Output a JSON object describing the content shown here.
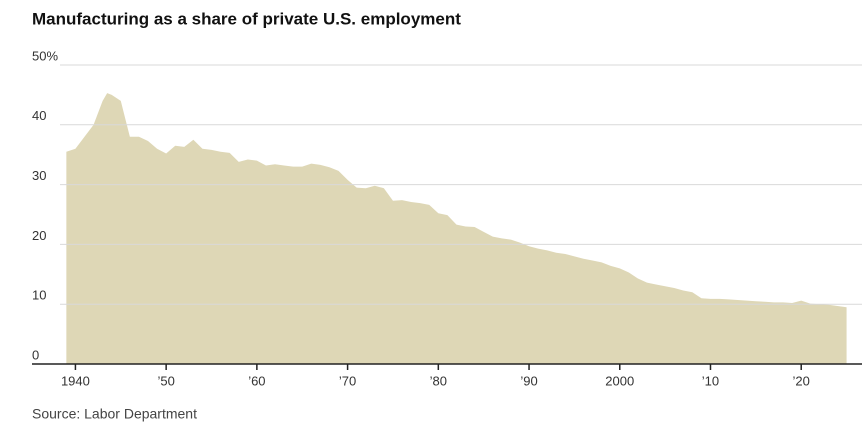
{
  "chart_data": {
    "type": "area",
    "title": "Manufacturing as a share of private U.S. employment",
    "source": "Source: Labor Department",
    "color": "#ded7b6",
    "grid": true,
    "x": [
      1939,
      1940,
      1941,
      1942,
      1943,
      1943.5,
      1944,
      1945,
      1945.5,
      1946,
      1947,
      1948,
      1949,
      1950,
      1951,
      1952,
      1953,
      1954,
      1955,
      1956,
      1957,
      1958,
      1959,
      1960,
      1961,
      1962,
      1963,
      1964,
      1965,
      1966,
      1967,
      1968,
      1969,
      1970,
      1971,
      1972,
      1973,
      1974,
      1975,
      1976,
      1977,
      1978,
      1979,
      1980,
      1981,
      1982,
      1983,
      1984,
      1985,
      1986,
      1987,
      1988,
      1989,
      1990,
      1991,
      1992,
      1993,
      1994,
      1995,
      1996,
      1997,
      1998,
      1999,
      2000,
      2001,
      2002,
      2003,
      2004,
      2005,
      2006,
      2007,
      2008,
      2009,
      2010,
      2011,
      2012,
      2013,
      2014,
      2015,
      2016,
      2017,
      2018,
      2019,
      2020,
      2021,
      2022,
      2023,
      2024,
      2025
    ],
    "values": [
      35.5,
      36,
      38,
      40,
      44,
      45.3,
      45,
      44,
      41,
      38,
      38,
      37.3,
      36,
      35.2,
      36.5,
      36.3,
      37.5,
      36,
      35.8,
      35.5,
      35.3,
      33.8,
      34.2,
      34,
      33.2,
      33.4,
      33.2,
      33,
      33,
      33.5,
      33.3,
      32.9,
      32.3,
      30.8,
      29.5,
      29.4,
      29.8,
      29.4,
      27.3,
      27.4,
      27.1,
      26.9,
      26.6,
      25.2,
      24.9,
      23.3,
      23,
      22.9,
      22.1,
      21.3,
      21,
      20.8,
      20.3,
      19.7,
      19.3,
      19,
      18.6,
      18.4,
      18,
      17.6,
      17.3,
      17,
      16.4,
      16,
      15.3,
      14.3,
      13.6,
      13.3,
      13,
      12.7,
      12.3,
      12,
      11,
      10.9,
      10.9,
      10.8,
      10.7,
      10.6,
      10.5,
      10.4,
      10.3,
      10.3,
      10.2,
      10.6,
      10.1,
      10,
      9.9,
      9.7,
      9.5
    ],
    "xlim": [
      1938.3,
      2026.7
    ],
    "ylim": [
      0,
      50
    ],
    "xticks": [
      1940,
      {
        "value": 1950,
        "label": "’50"
      },
      {
        "value": 1960,
        "label": "’60"
      },
      {
        "value": 1970,
        "label": "’70"
      },
      {
        "value": 1980,
        "label": "’80"
      },
      {
        "value": 1990,
        "label": "’90"
      },
      2000,
      {
        "value": 2010,
        "label": "’10"
      },
      {
        "value": 2020,
        "label": "’20"
      }
    ],
    "yticks": [
      0,
      10,
      20,
      30,
      40,
      {
        "value": 50,
        "label": "50%"
      }
    ]
  }
}
